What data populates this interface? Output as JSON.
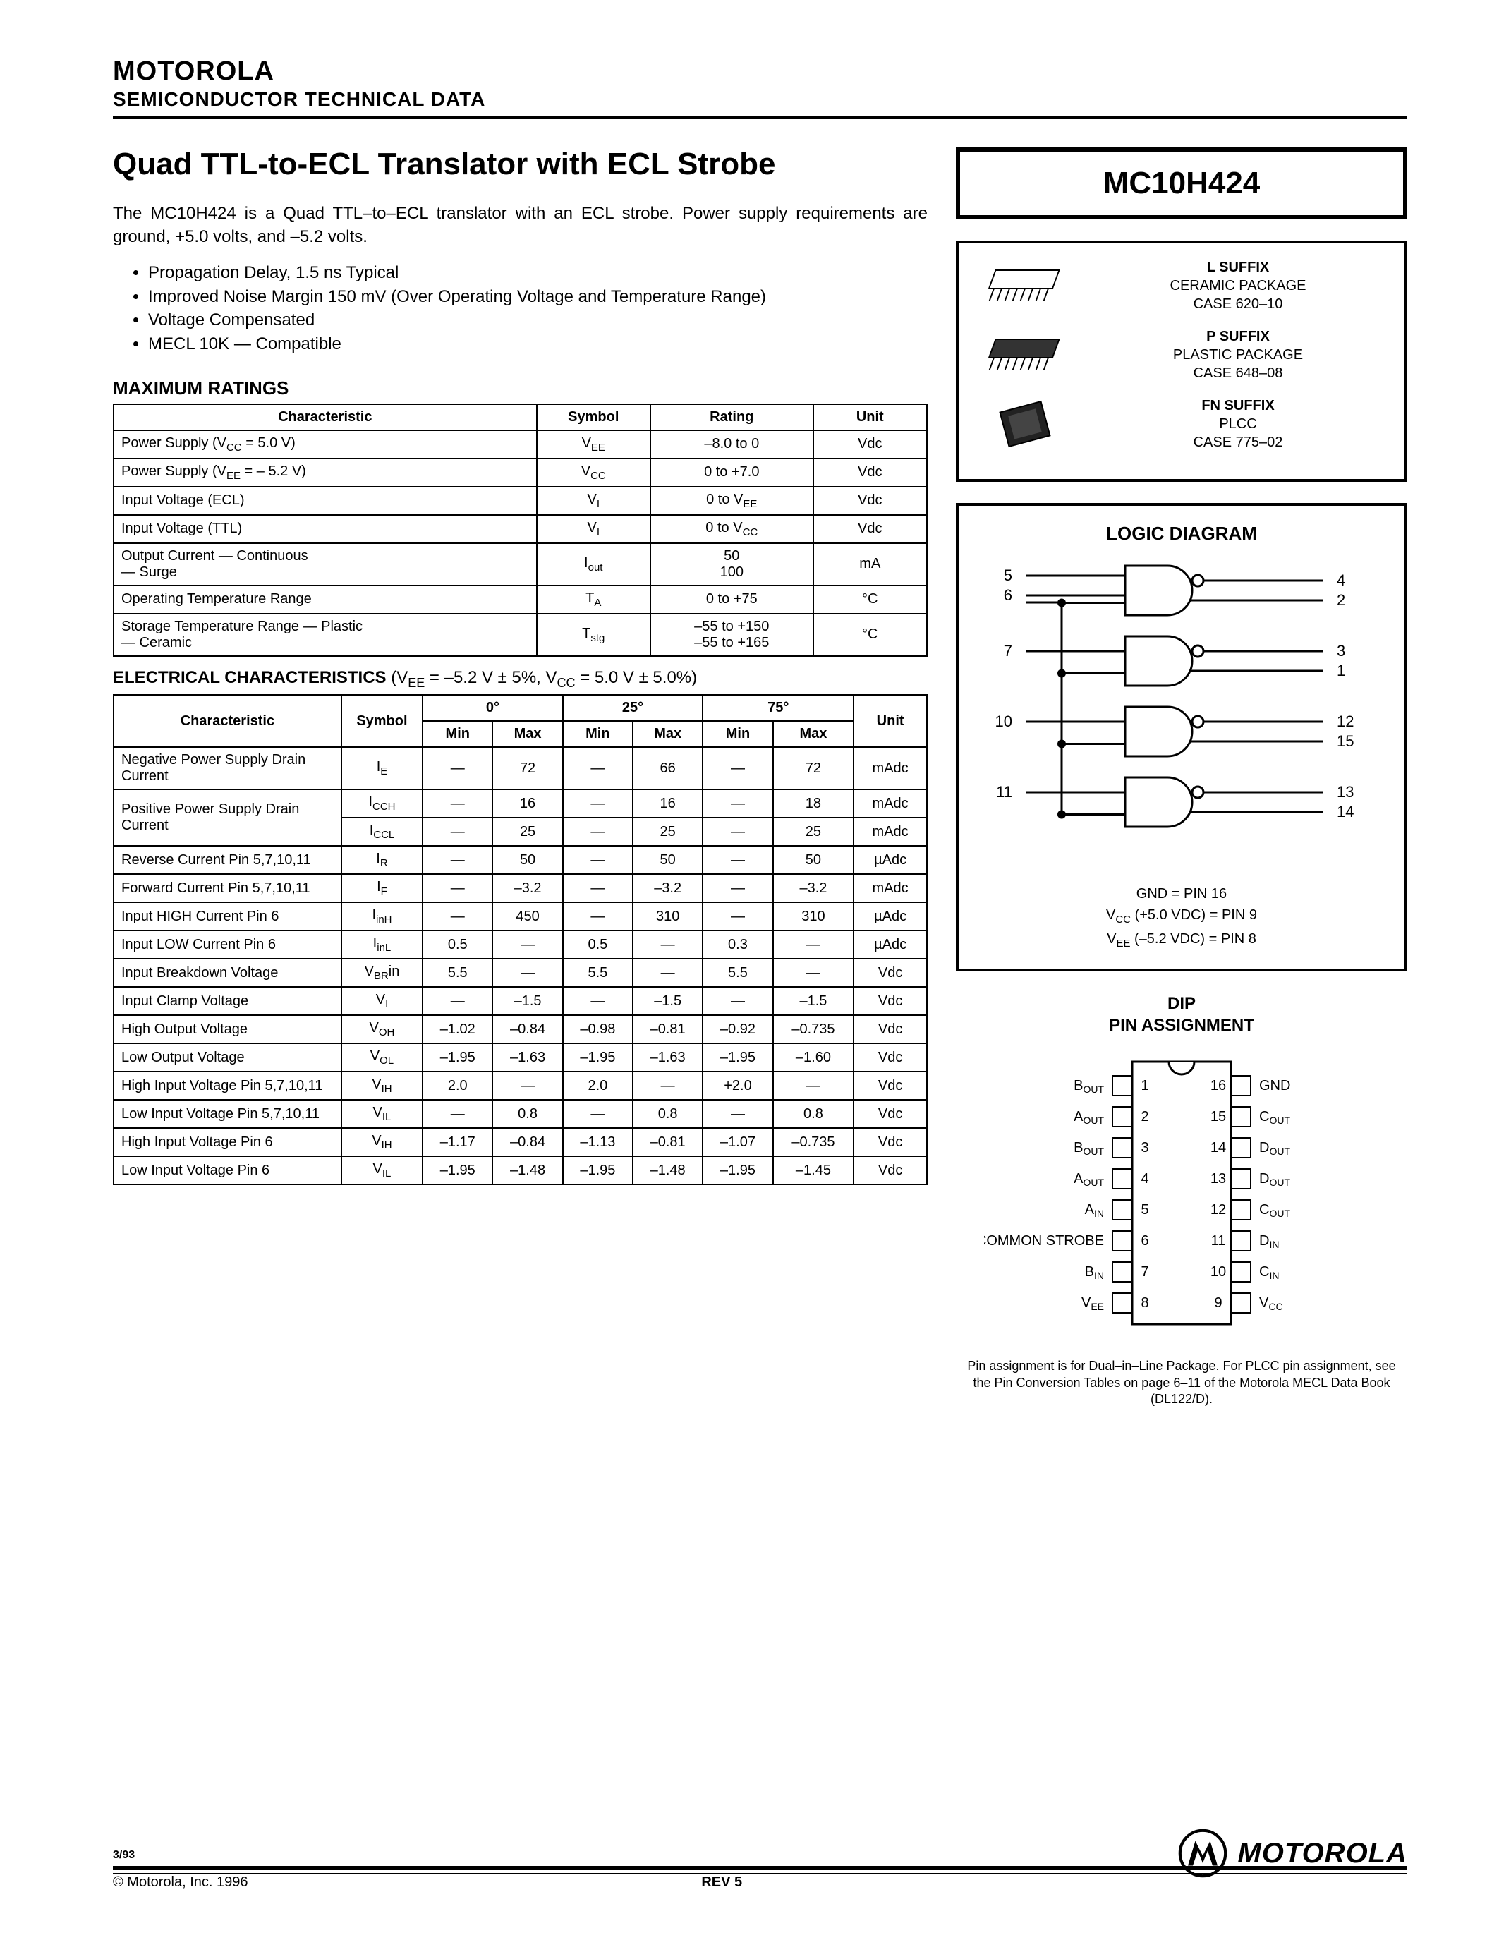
{
  "header": {
    "brand": "MOTOROLA",
    "subhead": "SEMICONDUCTOR TECHNICAL DATA"
  },
  "title": "Quad TTL-to-ECL Translator with ECL Strobe",
  "part_number": "MC10H424",
  "intro": "The MC10H424 is a Quad TTL–to–ECL translator with an ECL strobe. Power supply requirements are ground, +5.0 volts, and –5.2 volts.",
  "bullets": [
    "Propagation Delay, 1.5 ns Typical",
    "Improved Noise Margin 150 mV (Over Operating Voltage and Temperature Range)",
    "Voltage Compensated",
    "MECL 10K — Compatible"
  ],
  "max_ratings": {
    "heading": "MAXIMUM RATINGS",
    "columns": [
      "Characteristic",
      "Symbol",
      "Rating",
      "Unit"
    ],
    "rows": [
      [
        "Power Supply (V_CC = 5.0 V)",
        "V_EE",
        "–8.0 to 0",
        "Vdc"
      ],
      [
        "Power Supply (V_EE = – 5.2 V)",
        "V_CC",
        "0 to +7.0",
        "Vdc"
      ],
      [
        "Input Voltage (ECL)",
        "V_I",
        "0 to V_EE",
        "Vdc"
      ],
      [
        "Input Voltage (TTL)",
        "V_I",
        "0 to V_CC",
        "Vdc"
      ],
      [
        "Output Current — Continuous\n— Surge",
        "I_out",
        "50\n100",
        "mA"
      ],
      [
        "Operating Temperature Range",
        "T_A",
        "0 to +75",
        "°C"
      ],
      [
        "Storage Temperature Range — Plastic\n— Ceramic",
        "T_stg",
        "–55 to +150\n–55 to +165",
        "°C"
      ]
    ]
  },
  "elec": {
    "caption_bold": "ELECTRICAL CHARACTERISTICS",
    "caption_rest": " (V_EE = –5.2 V ± 5%, V_CC = 5.0 V ± 5.0%)",
    "temp_cols": [
      "0°",
      "25°",
      "75°"
    ],
    "sub_cols": [
      "Min",
      "Max"
    ],
    "columns": [
      "Characteristic",
      "Symbol",
      "Min",
      "Max",
      "Min",
      "Max",
      "Min",
      "Max",
      "Unit"
    ],
    "rows": [
      {
        "char": "Negative Power Supply Drain Current",
        "sym": "I_E",
        "v": [
          "—",
          "72",
          "—",
          "66",
          "—",
          "72"
        ],
        "unit": "mAdc"
      },
      {
        "char": "Positive Power Supply Drain Current",
        "sym": "I_CCH",
        "v": [
          "—",
          "16",
          "—",
          "16",
          "—",
          "18"
        ],
        "unit": "mAdc",
        "rowspan_char": 2
      },
      {
        "char": "",
        "sym": "I_CCL",
        "v": [
          "—",
          "25",
          "—",
          "25",
          "—",
          "25"
        ],
        "unit": "mAdc"
      },
      {
        "char": "Reverse Current Pin 5,7,10,11",
        "sym": "I_R",
        "v": [
          "—",
          "50",
          "—",
          "50",
          "—",
          "50"
        ],
        "unit": "µAdc"
      },
      {
        "char": "Forward Current Pin 5,7,10,11",
        "sym": "I_F",
        "v": [
          "—",
          "–3.2",
          "—",
          "–3.2",
          "—",
          "–3.2"
        ],
        "unit": "mAdc"
      },
      {
        "char": "Input HIGH Current Pin 6",
        "sym": "I_inH",
        "v": [
          "—",
          "450",
          "—",
          "310",
          "—",
          "310"
        ],
        "unit": "µAdc"
      },
      {
        "char": "Input LOW Current Pin 6",
        "sym": "I_inL",
        "v": [
          "0.5",
          "—",
          "0.5",
          "—",
          "0.3",
          "—"
        ],
        "unit": "µAdc"
      },
      {
        "char": "Input Breakdown Voltage",
        "sym": "V_(BR)in",
        "v": [
          "5.5",
          "—",
          "5.5",
          "—",
          "5.5",
          "—"
        ],
        "unit": "Vdc"
      },
      {
        "char": "Input Clamp Voltage",
        "sym": "V_I",
        "v": [
          "—",
          "–1.5",
          "—",
          "–1.5",
          "—",
          "–1.5"
        ],
        "unit": "Vdc"
      },
      {
        "char": "High Output Voltage",
        "sym": "V_OH",
        "v": [
          "–1.02",
          "–0.84",
          "–0.98",
          "–0.81",
          "–0.92",
          "–0.735"
        ],
        "unit": "Vdc"
      },
      {
        "char": "Low Output Voltage",
        "sym": "V_OL",
        "v": [
          "–1.95",
          "–1.63",
          "–1.95",
          "–1.63",
          "–1.95",
          "–1.60"
        ],
        "unit": "Vdc"
      },
      {
        "char": "High Input Voltage Pin 5,7,10,11",
        "sym": "V_IH",
        "v": [
          "2.0",
          "—",
          "2.0",
          "—",
          "+2.0",
          "—"
        ],
        "unit": "Vdc"
      },
      {
        "char": "Low Input Voltage Pin 5,7,10,11",
        "sym": "V_IL",
        "v": [
          "—",
          "0.8",
          "—",
          "0.8",
          "—",
          "0.8"
        ],
        "unit": "Vdc"
      },
      {
        "char": "High Input Voltage Pin 6",
        "sym": "V_IH",
        "v": [
          "–1.17",
          "–0.84",
          "–1.13",
          "–0.81",
          "–1.07",
          "–0.735"
        ],
        "unit": "Vdc"
      },
      {
        "char": "Low Input Voltage Pin 6",
        "sym": "V_IL",
        "v": [
          "–1.95",
          "–1.48",
          "–1.95",
          "–1.48",
          "–1.95",
          "–1.45"
        ],
        "unit": "Vdc"
      }
    ]
  },
  "packages": [
    {
      "suffix": "L SUFFIX",
      "name": "CERAMIC PACKAGE",
      "case": "CASE 620–10"
    },
    {
      "suffix": "P SUFFIX",
      "name": "PLASTIC PACKAGE",
      "case": "CASE 648–08"
    },
    {
      "suffix": "FN SUFFIX",
      "name": "PLCC",
      "case": "CASE 775–02"
    }
  ],
  "logic": {
    "title": "LOGIC DIAGRAM",
    "gates": [
      {
        "in": [
          "5",
          "6"
        ],
        "out": [
          "4",
          "2"
        ]
      },
      {
        "in": [
          "7"
        ],
        "out": [
          "3",
          "1"
        ]
      },
      {
        "in": [
          "10"
        ],
        "out": [
          "12",
          "15"
        ]
      },
      {
        "in": [
          "11"
        ],
        "out": [
          "13",
          "14"
        ]
      }
    ],
    "notes": [
      "GND   =   PIN 16",
      "V_CC (+5.0 VDC)   =   PIN 9",
      "V_EE (–5.2 VDC)   =   PIN 8"
    ]
  },
  "dip": {
    "title_l1": "DIP",
    "title_l2": "PIN ASSIGNMENT",
    "left": [
      "B_OUT",
      "A_OUT",
      "B_OUT",
      "A_OUT",
      "A_IN",
      "COMMON STROBE",
      "B_IN",
      "V_EE"
    ],
    "right": [
      "GND",
      "C_OUT",
      "D_OUT",
      "D_OUT",
      "C_OUT",
      "D_IN",
      "C_IN",
      "V_CC"
    ],
    "note": "Pin assignment is for Dual–in–Line Package. For PLCC pin assignment, see the Pin Conversion Tables on page 6–11 of the Motorola MECL Data Book (DL122/D)."
  },
  "footer": {
    "date": "3/93",
    "copyright": "©  Motorola, Inc. 1996",
    "rev": "REV 5",
    "brand": "MOTOROLA"
  }
}
